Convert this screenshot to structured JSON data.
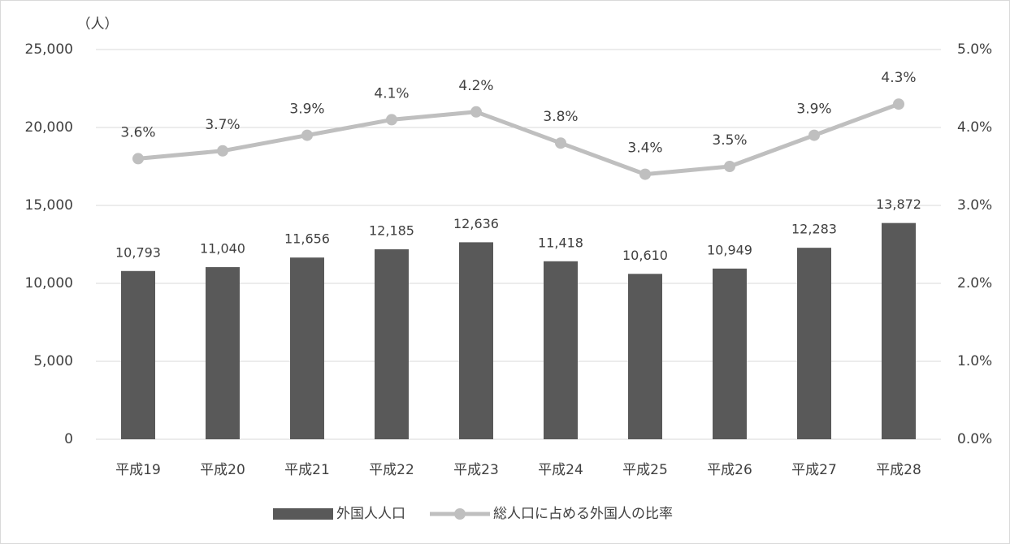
{
  "chart_data": {
    "type": "combo",
    "y_unit": "（人）",
    "categories": [
      "平成19",
      "平成20",
      "平成21",
      "平成22",
      "平成23",
      "平成24",
      "平成25",
      "平成26",
      "平成27",
      "平成28"
    ],
    "series": [
      {
        "name": "外国人人口",
        "type": "bar",
        "color": "#595959",
        "values": [
          10793,
          11040,
          11656,
          12185,
          12636,
          11418,
          10610,
          10949,
          12283,
          13872
        ],
        "value_labels": [
          "10,793",
          "11,040",
          "11,656",
          "12,185",
          "12,636",
          "11,418",
          "10,610",
          "10,949",
          "12,283",
          "13,872"
        ]
      },
      {
        "name": "総人口に占める外国人の比率",
        "type": "line",
        "axis": "y2",
        "color": "#bfbfbf",
        "values": [
          3.6,
          3.7,
          3.9,
          4.1,
          4.2,
          3.8,
          3.4,
          3.5,
          3.9,
          4.3
        ],
        "value_labels": [
          "3.6%",
          "3.7%",
          "3.9%",
          "4.1%",
          "4.2%",
          "3.8%",
          "3.4%",
          "3.5%",
          "3.9%",
          "4.3%"
        ]
      }
    ],
    "ylim": [
      0,
      25000
    ],
    "yticks": [
      0,
      {
        "value": 5000,
        "label": "5,000"
      },
      {
        "value": 10000,
        "label": "10,000"
      },
      {
        "value": 15000,
        "label": "15,000"
      },
      {
        "value": 20000,
        "label": "20,000"
      },
      {
        "value": 25000,
        "label": "25,000"
      }
    ],
    "y2lim": [
      0,
      5
    ],
    "y2ticks": [
      {
        "value": 0,
        "label": "0.0%"
      },
      {
        "value": 1,
        "label": "1.0%"
      },
      {
        "value": 2,
        "label": "2.0%"
      },
      {
        "value": 3,
        "label": "3.0%"
      },
      {
        "value": 4,
        "label": "4.0%"
      },
      {
        "value": 5,
        "label": "5.0%"
      }
    ],
    "grid": true,
    "legend": "bottom"
  }
}
